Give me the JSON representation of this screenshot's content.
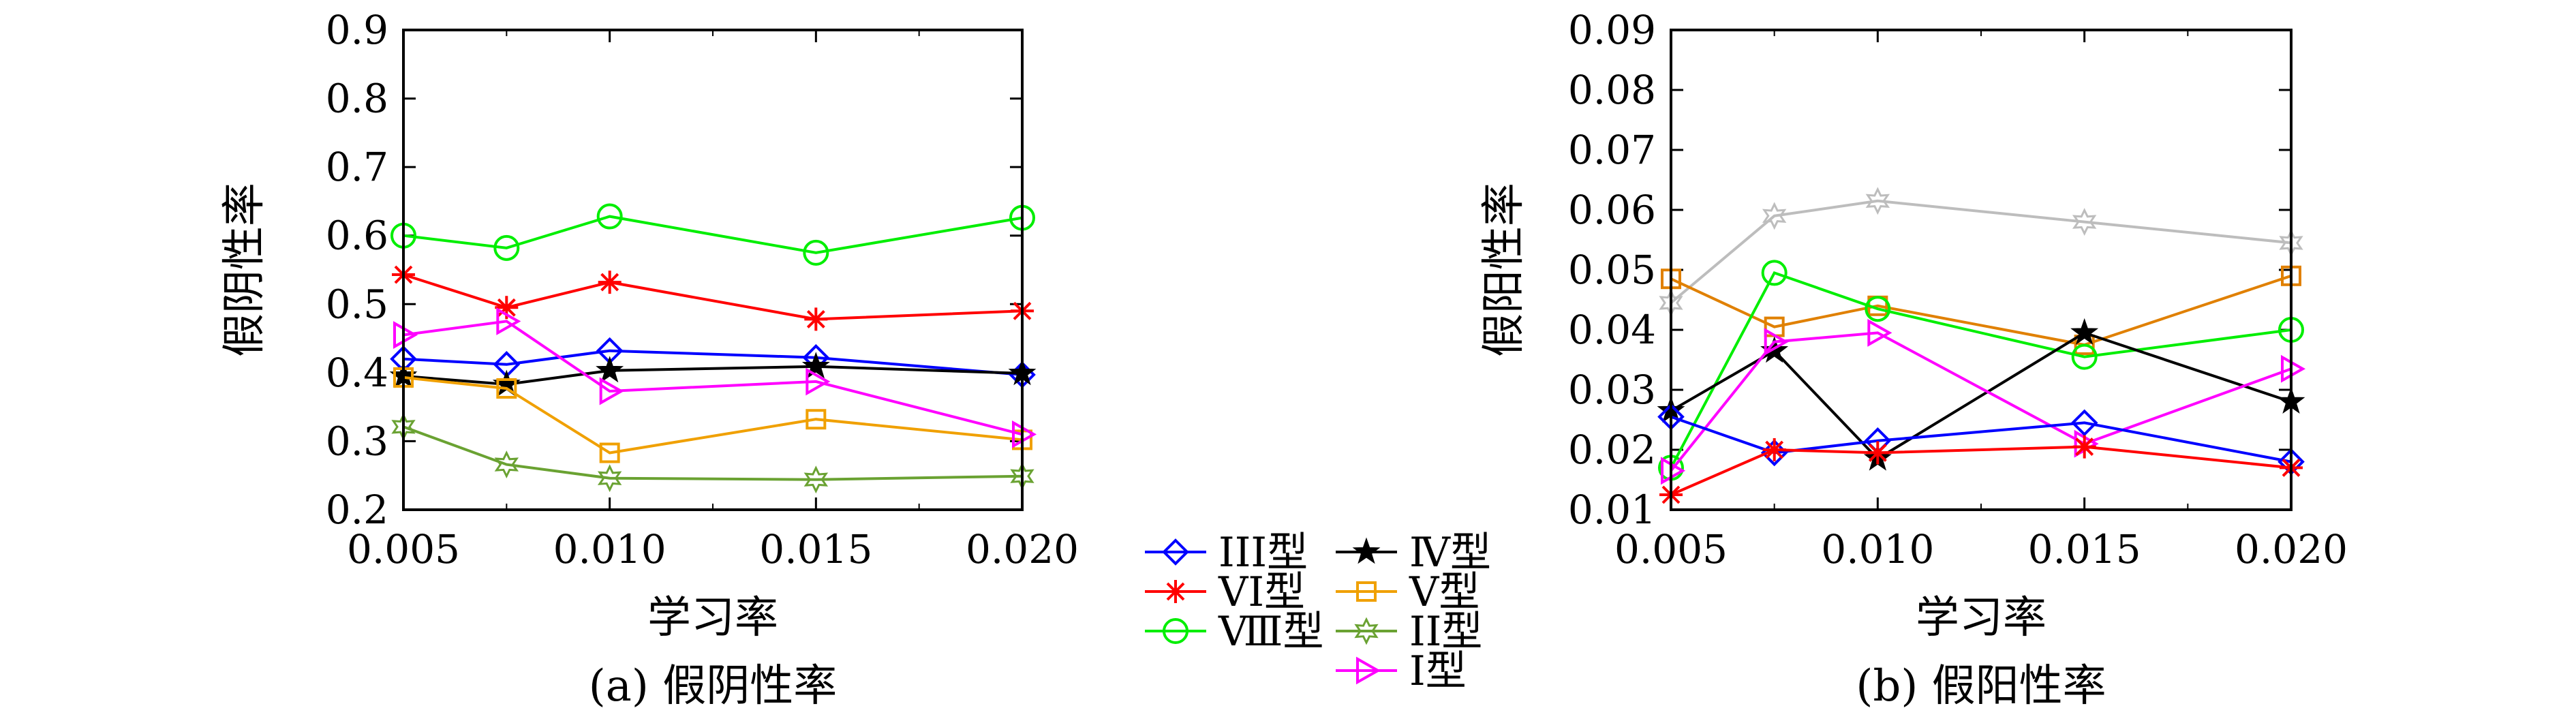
{
  "legend": {
    "items": [
      {
        "label": "III型",
        "color": "#0000ff",
        "marker": "diamond"
      },
      {
        "label": "VI型",
        "color": "#ff0000",
        "marker": "asterisk"
      },
      {
        "label": "Ⅷ型",
        "color": "#00ee00",
        "marker": "circle"
      },
      {
        "label": "Ⅳ型",
        "color": "#000000",
        "marker": "star"
      },
      {
        "label": "Ⅴ型",
        "color": "#f0a000",
        "marker": "square"
      },
      {
        "label": "II型",
        "color": "#6aa232",
        "marker": "hexagram"
      },
      {
        "label": "Ⅰ型",
        "color": "#ff00ff",
        "marker": "triangle-right"
      }
    ]
  },
  "chart_data": [
    {
      "type": "line",
      "caption": "(a) 假阴性率",
      "xlabel": "学习率",
      "ylabel": "假阴性率",
      "x": [
        0.005,
        0.0075,
        0.01,
        0.015,
        0.02
      ],
      "xticks": [
        "0.005",
        "0.010",
        "0.015",
        "0.020"
      ],
      "yticks": [
        "0.2",
        "0.3",
        "0.4",
        "0.5",
        "0.6",
        "0.7",
        "0.8",
        "0.9"
      ],
      "xlim": [
        0.005,
        0.02
      ],
      "ylim": [
        0.2,
        0.9
      ],
      "series": [
        {
          "name": "III型",
          "color": "#0000ff",
          "marker": "diamond",
          "values": [
            0.42,
            0.412,
            0.432,
            0.422,
            0.397
          ]
        },
        {
          "name": "VI型",
          "color": "#ff0000",
          "marker": "asterisk",
          "values": [
            0.543,
            0.495,
            0.532,
            0.478,
            0.49
          ]
        },
        {
          "name": "Ⅷ型",
          "color": "#00ee00",
          "marker": "circle",
          "values": [
            0.6,
            0.582,
            0.628,
            0.575,
            0.626
          ]
        },
        {
          "name": "Ⅳ型",
          "color": "#000000",
          "marker": "star",
          "values": [
            0.395,
            0.383,
            0.403,
            0.409,
            0.399
          ]
        },
        {
          "name": "Ⅴ型",
          "color": "#f0a000",
          "marker": "square",
          "values": [
            0.393,
            0.377,
            0.283,
            0.332,
            0.302
          ]
        },
        {
          "name": "II型",
          "color": "#6aa232",
          "marker": "hexagram",
          "values": [
            0.321,
            0.266,
            0.246,
            0.244,
            0.249
          ]
        },
        {
          "name": "Ⅰ型",
          "color": "#ff00ff",
          "marker": "triangle-right",
          "values": [
            0.455,
            0.475,
            0.373,
            0.387,
            0.31
          ]
        }
      ]
    },
    {
      "type": "line",
      "caption": "(b) 假阳性率",
      "xlabel": "学习率",
      "ylabel": "假阳性率",
      "x": [
        0.005,
        0.0075,
        0.01,
        0.015,
        0.02
      ],
      "xticks": [
        "0.005",
        "0.010",
        "0.015",
        "0.020"
      ],
      "yticks": [
        "0.01",
        "0.02",
        "0.03",
        "0.04",
        "0.05",
        "0.06",
        "0.07",
        "0.08",
        "0.09"
      ],
      "xlim": [
        0.005,
        0.02
      ],
      "ylim": [
        0.01,
        0.09
      ],
      "series": [
        {
          "color": "#bdbdbd",
          "marker": "hexagram",
          "values": [
            0.0445,
            0.059,
            0.0615,
            0.058,
            0.0545
          ]
        },
        {
          "color": "#e08000",
          "marker": "square",
          "values": [
            0.0485,
            0.0405,
            0.044,
            0.0375,
            0.049
          ]
        },
        {
          "color": "#00ee00",
          "marker": "circle",
          "values": [
            0.017,
            0.0495,
            0.0435,
            0.0355,
            0.04
          ]
        },
        {
          "color": "#000000",
          "marker": "star",
          "values": [
            0.0265,
            0.0365,
            0.0185,
            0.0395,
            0.028
          ]
        },
        {
          "color": "#ff00ff",
          "marker": "triangle-right",
          "values": [
            0.0165,
            0.038,
            0.0395,
            0.021,
            0.0335
          ]
        },
        {
          "color": "#0000ff",
          "marker": "diamond",
          "values": [
            0.0255,
            0.0195,
            0.0215,
            0.0245,
            0.018
          ]
        },
        {
          "color": "#ff0000",
          "marker": "asterisk",
          "values": [
            0.0125,
            0.02,
            0.0195,
            0.0205,
            0.017
          ]
        }
      ]
    }
  ]
}
